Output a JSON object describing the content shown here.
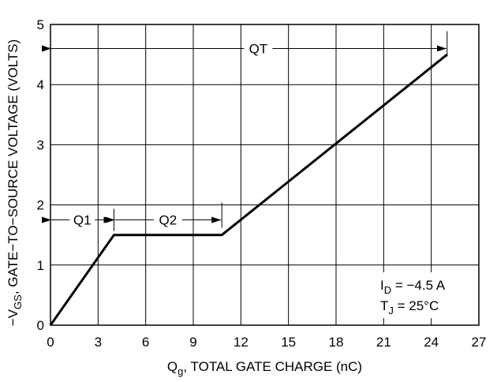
{
  "chart_data": {
    "type": "line",
    "xlabel": "Q",
    "xlabel_sub": "g",
    "xlabel_rest": ", TOTAL GATE CHARGE (nC)",
    "ylabel": "−V",
    "ylabel_sub": "GS",
    "ylabel_rest": ", GATE−TO−SOURCE VOLTAGE (VOLTS)",
    "xlim": [
      0,
      27
    ],
    "ylim": [
      0,
      5
    ],
    "x_ticks": [
      "0",
      "3",
      "6",
      "9",
      "12",
      "15",
      "18",
      "21",
      "24",
      "27"
    ],
    "y_ticks": [
      "0",
      "1",
      "2",
      "3",
      "4",
      "5"
    ],
    "grid": true,
    "series": [
      {
        "x": [
          0,
          4,
          10.8,
          25
        ],
        "y": [
          0,
          1.5,
          1.5,
          4.5
        ]
      }
    ],
    "annotations": {
      "q1": "Q1",
      "q2": "Q2",
      "qt": "QT"
    },
    "conditions": {
      "id_main": "I",
      "id_sub": "D",
      "id_rest": " = −4.5 A",
      "tj_main": "T",
      "tj_sub": "J",
      "tj_rest": " = 25°C"
    }
  }
}
